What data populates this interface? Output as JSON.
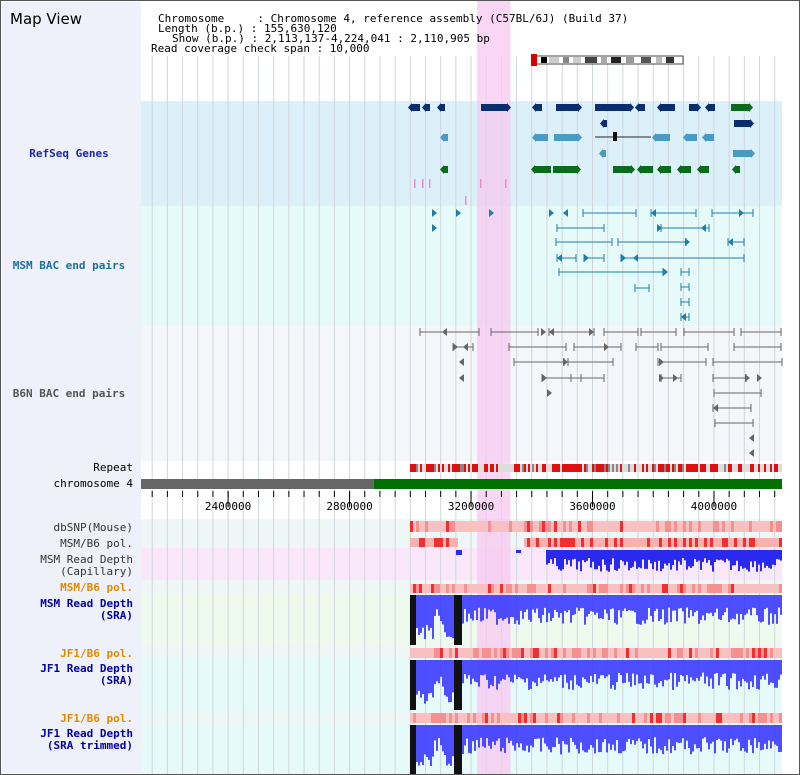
{
  "title": "Map View",
  "info": {
    "chromosome_line": "Chromosome     : Chromosome 4, reference assembly (C57BL/6J) (Build 37)",
    "length_line": "Length (b.p.) : 155,630,120",
    "show_line": "Show (b.p.) : 2,113,137-4,224,041 : 2,110,905 bp",
    "coverage_line": "Read coverage check span : 10,000"
  },
  "tracks": {
    "refseq": "RefSeq Genes",
    "msm_bac": "MSM BAC end pairs",
    "b6n_bac": "B6N BAC end pairs",
    "repeat": "Repeat",
    "chromosome": "chromosome 4",
    "dbsnp": "dbSNP(Mouse)",
    "msm_b6_pol_1": "MSM/B6 pol.",
    "msm_cap_1": "MSM Read Depth",
    "msm_cap_2": "(Capillary)",
    "msm_b6_pol_2": "MSM/B6 pol.",
    "msm_sra_1": "MSM Read Depth",
    "msm_sra_2": "(SRA)",
    "jf1_b6_pol_1": "JF1/B6 pol.",
    "jf1_sra_1": "JF1 Read Depth",
    "jf1_sra_2": "(SRA)",
    "jf1_b6_pol_2": "JF1/B6 pol.",
    "jf1_trim_1": "JF1 Read Depth",
    "jf1_trim_2": "(SRA trimmed)"
  },
  "axis": {
    "ticks": [
      "2400000",
      "2800000",
      "3200000",
      "3600000",
      "4000000"
    ],
    "tick_values": [
      2400000,
      2800000,
      3200000,
      3600000,
      4000000
    ],
    "range": [
      2113137,
      4224041
    ]
  },
  "highlight_region": [
    3220000,
    3330000
  ],
  "colors": {
    "refseq_bg": "#dcf0fa",
    "msm_bg": "#e6fafa",
    "b6n_bg": "#f4f6fa",
    "highlight": "#f7c8f0",
    "gene_dark": "#0a2d6e",
    "gene_teal": "#4a9ac4",
    "gene_green": "#0a6a1e",
    "chrom_grey": "#666666",
    "chrom_green": "#007000",
    "msm_label": "#1e6e9e",
    "b6n_label": "#555555",
    "pol_label": "#e08a00",
    "depth_label": "#0000a0",
    "depth_fill": "#3b3bff"
  }
}
